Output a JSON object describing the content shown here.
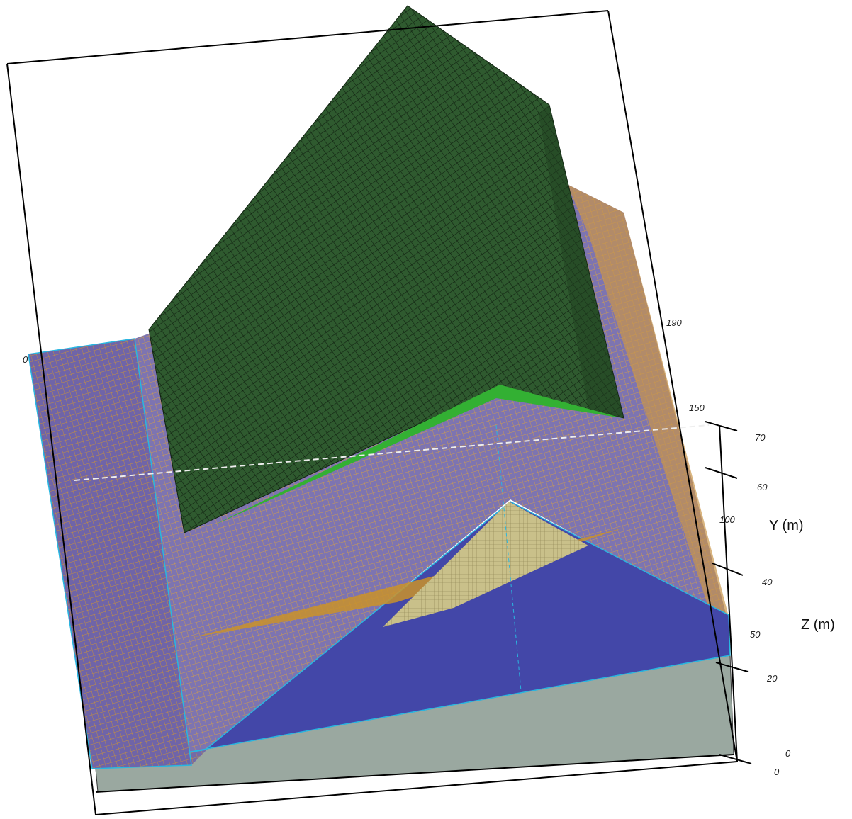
{
  "axes": {
    "x": {
      "ticks": [
        "0"
      ]
    },
    "y": {
      "title": "Y (m)",
      "ticks": [
        "190",
        "150",
        "100",
        "0"
      ]
    },
    "z": {
      "title": "Z (m)",
      "ticks": [
        "70",
        "60",
        "40",
        "50",
        "20",
        "0"
      ]
    }
  }
}
